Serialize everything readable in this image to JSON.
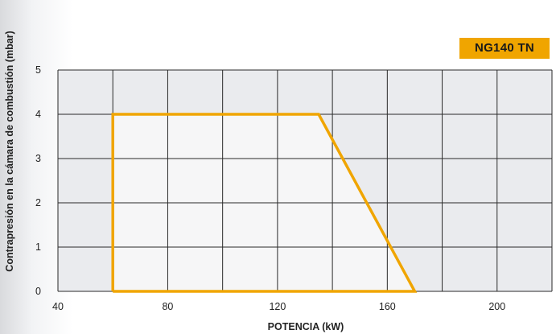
{
  "chart_data": {
    "type": "area",
    "title": "NG140 TN",
    "xlabel": "POTENCIA (kW)",
    "ylabel": "Contrapresión en la cámara de combustión (mbar)",
    "xlim": [
      40,
      220
    ],
    "ylim": [
      0,
      5
    ],
    "x_ticks": [
      40,
      80,
      120,
      160,
      200
    ],
    "y_ticks": [
      0,
      1,
      2,
      3,
      4,
      5
    ],
    "x_gridlines": [
      40,
      60,
      80,
      100,
      120,
      140,
      160,
      180,
      200,
      220
    ],
    "grid": true,
    "series": [
      {
        "x": [
          60,
          60,
          135,
          170,
          60
        ],
        "y": [
          0,
          4,
          4,
          0,
          0
        ]
      }
    ],
    "colors": {
      "envelope": "#f0a500",
      "envelope_fill": "#f6f6f7",
      "plot_background": "#eaebee",
      "grid": "#2a2a2a"
    }
  }
}
